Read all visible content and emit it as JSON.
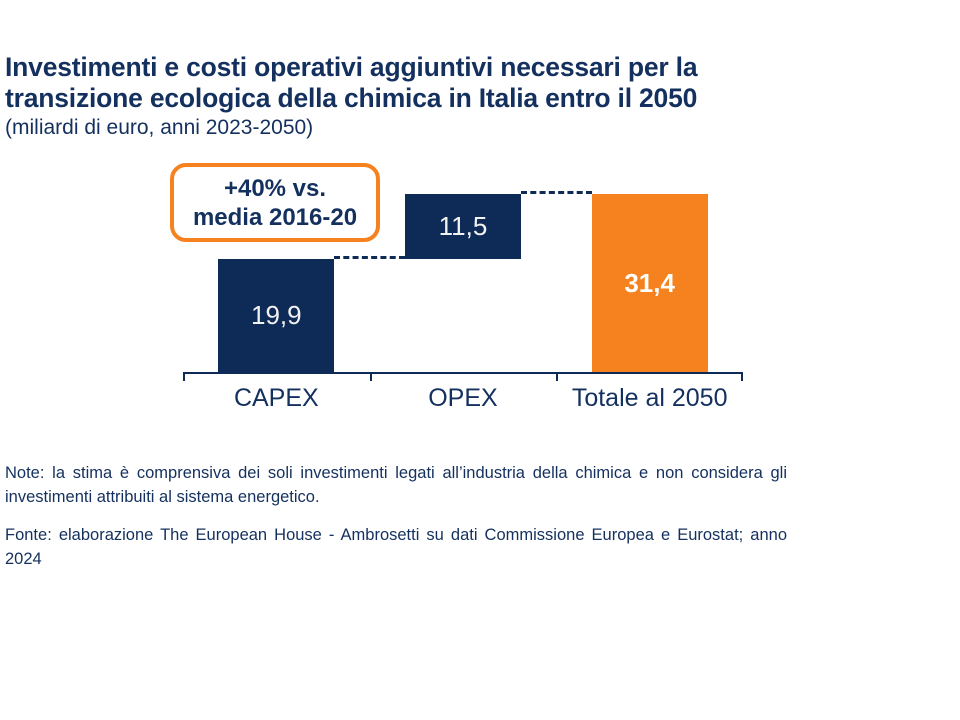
{
  "colors": {
    "navy_text": "#14305E",
    "navy_bar": "#0E2A56",
    "orange": "#F6821F",
    "value_label": "#F2F2F2"
  },
  "header": {
    "title_line1": "Investimenti e costi operativi aggiuntivi necessari per la",
    "title_line2": "transizione ecologica della chimica in Italia entro il 2050",
    "subtitle": "(miliardi di euro, anni 2023-2050)"
  },
  "callout": {
    "line1": "+40% vs.",
    "line2": "media 2016-20"
  },
  "chart_data": {
    "type": "bar",
    "subtype": "waterfall",
    "title": "Investimenti e costi operativi aggiuntivi necessari per la transizione ecologica della chimica in Italia entro il 2050",
    "unit": "miliardi di euro, anni 2023-2050",
    "categories": [
      "CAPEX",
      "OPEX",
      "Totale al 2050"
    ],
    "values": [
      19.9,
      11.5,
      31.4
    ],
    "value_labels": [
      "19,9",
      "11,5",
      "31,4"
    ],
    "segment_base": [
      0,
      19.9,
      0
    ],
    "bar_colors": [
      "#0E2A56",
      "#0E2A56",
      "#F6821F"
    ],
    "value_label_bold": [
      false,
      false,
      true
    ],
    "ylim": [
      0,
      31.4
    ],
    "grid": false,
    "legend": false,
    "annotation": "+40% vs. media 2016-20",
    "connector_levels": [
      19.9,
      31.4
    ]
  },
  "footer": {
    "note": "Note: la stima è comprensiva dei soli investimenti legati all’industria della chimica e non considera gli investimenti attribuiti al sistema energetico.",
    "fonte": "Fonte: elaborazione The European House - Ambrosetti su dati Commissione Europea e Eurostat; anno 2024"
  }
}
